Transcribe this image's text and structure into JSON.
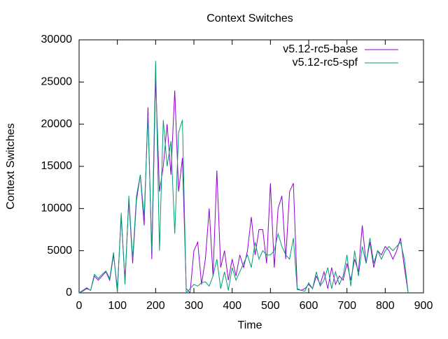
{
  "chart_data": {
    "type": "line",
    "title": "Context Switches",
    "x_label": "Time",
    "y_label": "Context Switches",
    "x": [
      0,
      10,
      20,
      30,
      40,
      50,
      60,
      70,
      80,
      90,
      100,
      110,
      120,
      130,
      140,
      150,
      160,
      170,
      180,
      190,
      200,
      210,
      220,
      230,
      240,
      250,
      260,
      270,
      280,
      290,
      300,
      310,
      320,
      330,
      340,
      350,
      360,
      370,
      380,
      390,
      400,
      410,
      420,
      430,
      440,
      450,
      460,
      470,
      480,
      490,
      500,
      510,
      520,
      530,
      540,
      550,
      560,
      570,
      580,
      590,
      600,
      610,
      620,
      630,
      640,
      650,
      660,
      670,
      680,
      690,
      700,
      710,
      720,
      730,
      740,
      750,
      760,
      770,
      780,
      790,
      800,
      810,
      820,
      830,
      840,
      850,
      860
    ],
    "series": [
      {
        "name": "v5.12-rc5-base",
        "color": "#9400d3",
        "values": [
          0,
          300,
          600,
          300,
          2000,
          1500,
          2000,
          2500,
          1500,
          4500,
          500,
          9000,
          1500,
          11000,
          3500,
          11000,
          14000,
          8000,
          22000,
          4000,
          25500,
          12000,
          15000,
          20000,
          14000,
          24000,
          12000,
          16000,
          500,
          0,
          5000,
          6000,
          1000,
          4000,
          10000,
          2000,
          14500,
          3000,
          5000,
          1500,
          4000,
          2000,
          4500,
          3000,
          5000,
          9000,
          4500,
          7500,
          7500,
          3500,
          13000,
          3000,
          10000,
          11500,
          4000,
          12000,
          13000,
          500,
          300,
          500,
          1000,
          500,
          2000,
          1000,
          2500,
          500,
          3000,
          1000,
          2000,
          1500,
          3500,
          1500,
          4000,
          2500,
          8000,
          3500,
          6000,
          3000,
          5000,
          4500,
          5500,
          5000,
          4000,
          5000,
          6500,
          3000,
          0
        ]
      },
      {
        "name": "v5.12-rc5-spf",
        "color": "#009e73",
        "values": [
          0,
          200,
          500,
          300,
          2200,
          1700,
          2200,
          2600,
          1700,
          4800,
          0,
          9500,
          1000,
          11500,
          4000,
          11500,
          14000,
          9000,
          21000,
          5000,
          27500,
          5000,
          20500,
          15000,
          18000,
          7000,
          19000,
          20500,
          0,
          500,
          1000,
          800,
          1200,
          1300,
          800,
          2000,
          4000,
          500,
          2500,
          300,
          3000,
          1500,
          2500,
          3500,
          4500,
          3000,
          6000,
          4000,
          5000,
          4500,
          4500,
          5000,
          7000,
          5500,
          4500,
          4000,
          6500,
          400,
          300,
          200,
          1200,
          500,
          2500,
          800,
          1500,
          3000,
          500,
          2500,
          1000,
          2000,
          4500,
          800,
          5000,
          2000,
          5500,
          3500,
          6500,
          3500,
          5000,
          4000,
          5000,
          5500,
          5000,
          5500,
          6000,
          4000,
          0
        ]
      }
    ],
    "xlim": [
      0,
      900
    ],
    "xticks": [
      0,
      100,
      200,
      300,
      400,
      500,
      600,
      700,
      800,
      900
    ],
    "ylim": [
      0,
      30000
    ],
    "yticks": [
      0,
      5000,
      10000,
      15000,
      20000,
      25000,
      30000
    ],
    "legend": "top-right"
  }
}
